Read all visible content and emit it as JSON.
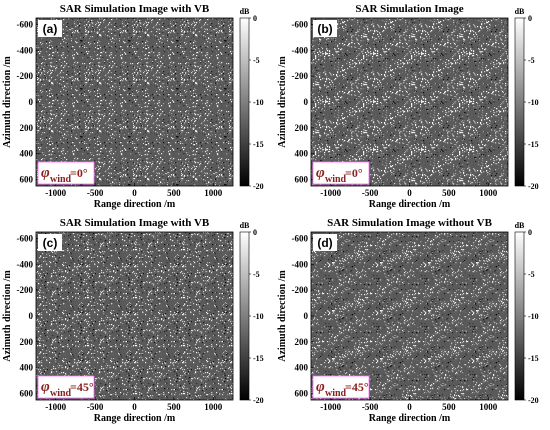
{
  "chart_data": [
    {
      "type": "heatmap",
      "panel": "(a)",
      "title": "SAR Simulation Image with VB",
      "xlabel": "Range direction /m",
      "ylabel": "Azimuth direction /m",
      "xticks": [
        -1000,
        -500,
        0,
        500,
        1000
      ],
      "yticks": [
        -600,
        -400,
        -200,
        0,
        200,
        400,
        600
      ],
      "xlim": [
        -1250,
        1250
      ],
      "ylim": [
        -650,
        650
      ],
      "y_axis_inverted": true,
      "colorbar": {
        "unit": "dB",
        "range": [
          -20,
          0
        ],
        "ticks": [
          0,
          -5,
          -10,
          -15,
          -20
        ],
        "colormap": "gray"
      },
      "wind_direction": "=0°",
      "texture": "speckle, faint near-vertical streaks"
    },
    {
      "type": "heatmap",
      "panel": "(b)",
      "title": "SAR Simulation Image",
      "xlabel": "Range direction /m",
      "ylabel": "Azimuth direction /m",
      "xticks": [
        -1000,
        -500,
        0,
        500,
        1000
      ],
      "yticks": [
        -600,
        -400,
        -200,
        0,
        200,
        400,
        600
      ],
      "xlim": [
        -1250,
        1250
      ],
      "ylim": [
        -650,
        650
      ],
      "y_axis_inverted": true,
      "colorbar": {
        "unit": "dB",
        "range": [
          -20,
          0
        ],
        "ticks": [
          0,
          -5,
          -10,
          -15,
          -20
        ],
        "colormap": "gray"
      },
      "wind_direction": "=0°",
      "texture": "speckle, strong diagonal wave stripes"
    },
    {
      "type": "heatmap",
      "panel": "(c)",
      "title": "SAR Simulation Image with VB",
      "xlabel": "Range direction /m",
      "ylabel": "Azimuth direction /m",
      "xticks": [
        -1000,
        -500,
        0,
        500,
        1000
      ],
      "yticks": [
        -600,
        -400,
        -200,
        0,
        200,
        400,
        600
      ],
      "xlim": [
        -1250,
        1250
      ],
      "ylim": [
        -650,
        650
      ],
      "y_axis_inverted": true,
      "colorbar": {
        "unit": "dB",
        "range": [
          -20,
          0
        ],
        "ticks": [
          0,
          -5,
          -10,
          -15,
          -20
        ],
        "colormap": "gray"
      },
      "wind_direction": "=45°",
      "texture": "speckle, faint near-vertical streaks"
    },
    {
      "type": "heatmap",
      "panel": "(d)",
      "title": "SAR Simulation Image without VB",
      "xlabel": "Range direction /m",
      "ylabel": "Azimuth direction /m",
      "xticks": [
        -1000,
        -500,
        0,
        500,
        1000
      ],
      "yticks": [
        -600,
        -400,
        -200,
        0,
        200,
        400,
        600
      ],
      "xlim": [
        -1250,
        1250
      ],
      "ylim": [
        -650,
        650
      ],
      "y_axis_inverted": true,
      "colorbar": {
        "unit": "dB",
        "range": [
          -20,
          0
        ],
        "ticks": [
          0,
          -5,
          -10,
          -15,
          -20
        ],
        "colormap": "gray"
      },
      "wind_direction": "=45°",
      "texture": "speckle, diagonal wave stripes"
    }
  ],
  "labels": {
    "phi": "φ",
    "wind": "wind",
    "db_unit": "dB"
  },
  "colors": {
    "wind_label": "#8b2020",
    "wind_box_border": "#ff66ff",
    "panel_label_bg": "#ffffff"
  }
}
